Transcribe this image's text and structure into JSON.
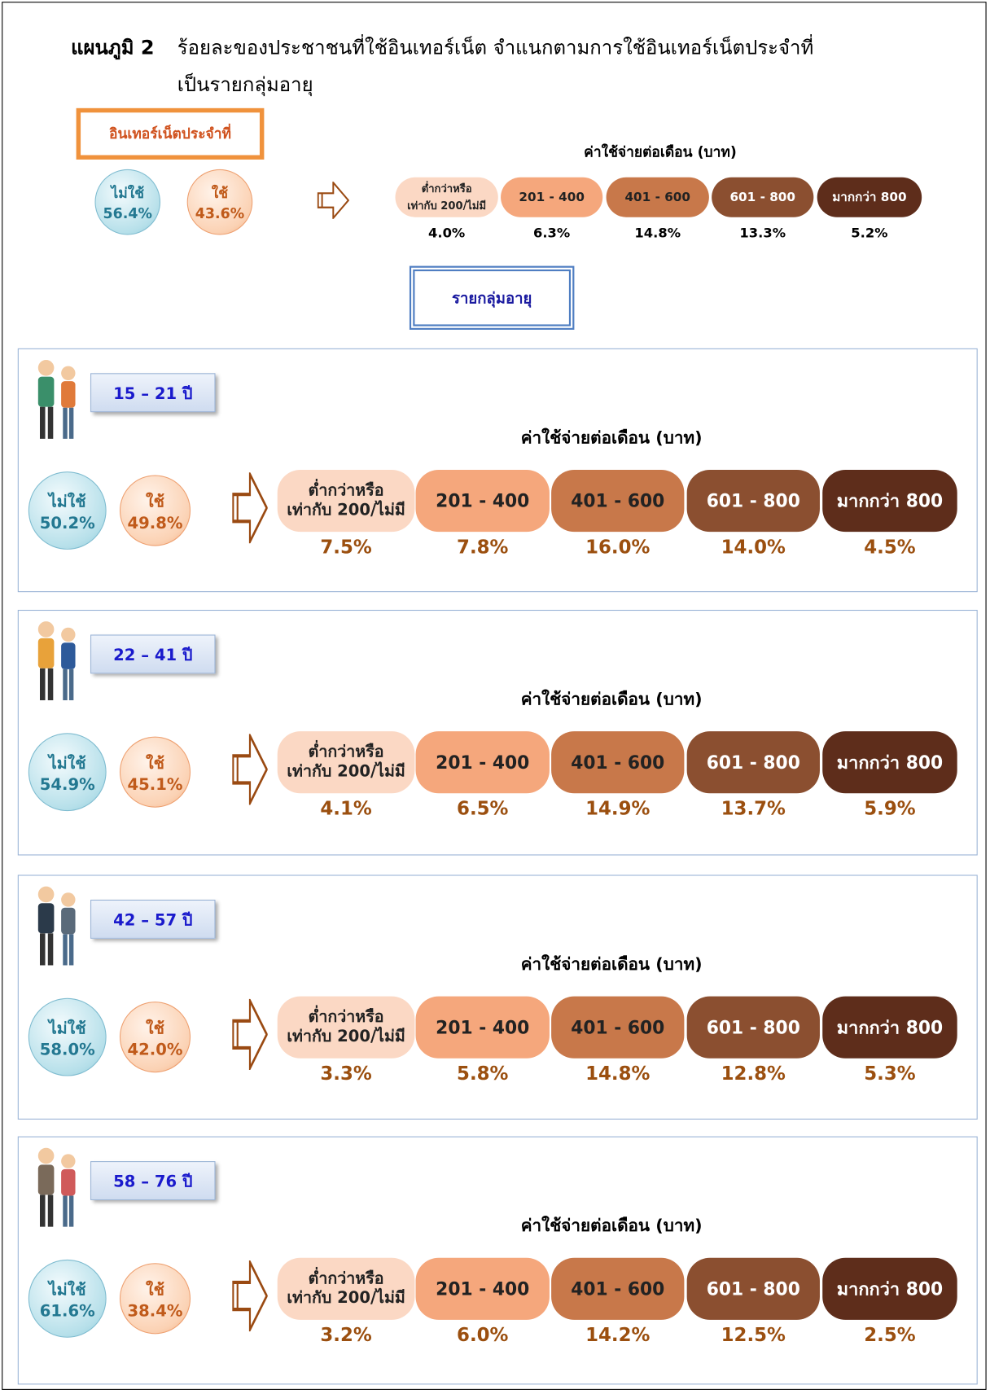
{
  "title": {
    "label": "แผนภูมิ 2",
    "line1": "ร้อยละของประชาชนที่ใช้อินเทอร์เน็ต จำแนกตามการใช้อินเทอร์เน็ตประจำที่",
    "line2": "เป็นรายกลุ่มอายุ"
  },
  "overall": {
    "heading": "อินเทอร์เน็ตประจำที่",
    "not_use": {
      "label": "ไม่ใช้",
      "value": "56.4%"
    },
    "use": {
      "label": "ใช้",
      "value": "43.6%"
    },
    "cost_title": "ค่าใช้จ่ายต่อเดือน (บาท)",
    "costs": [
      {
        "label": [
          "ต่ำกว่าหรือ",
          "เท่ากับ 200/ไม่มี"
        ],
        "value": "4.0%"
      },
      {
        "label": [
          "201 - 400"
        ],
        "value": "6.3%"
      },
      {
        "label": [
          "401 - 600"
        ],
        "value": "14.8%"
      },
      {
        "label": [
          "601 - 800"
        ],
        "value": "13.3%"
      },
      {
        "label": [
          "มากกว่า 800"
        ],
        "value": "5.2%"
      }
    ]
  },
  "group_heading": "รายกลุ่มอายุ",
  "groups": [
    {
      "age": "15 – 21 ปี",
      "not_use": {
        "label": "ไม่ใช้",
        "value": "50.2%"
      },
      "use": {
        "label": "ใช้",
        "value": "49.8%"
      },
      "cost_title": "ค่าใช้จ่ายต่อเดือน (บาท)",
      "costs": [
        {
          "label": [
            "ต่ำกว่าหรือ",
            "เท่ากับ 200/ไม่มี"
          ],
          "value": "7.5%"
        },
        {
          "label": [
            "201 - 400"
          ],
          "value": "7.8%"
        },
        {
          "label": [
            "401 - 600"
          ],
          "value": "16.0%"
        },
        {
          "label": [
            "601 - 800"
          ],
          "value": "14.0%"
        },
        {
          "label": [
            "มากกว่า 800"
          ],
          "value": "4.5%"
        }
      ]
    },
    {
      "age": "22 – 41 ปี",
      "not_use": {
        "label": "ไม่ใช้",
        "value": "54.9%"
      },
      "use": {
        "label": "ใช้",
        "value": "45.1%"
      },
      "cost_title": "ค่าใช้จ่ายต่อเดือน (บาท)",
      "costs": [
        {
          "label": [
            "ต่ำกว่าหรือ",
            "เท่ากับ 200/ไม่มี"
          ],
          "value": "4.1%"
        },
        {
          "label": [
            "201 - 400"
          ],
          "value": "6.5%"
        },
        {
          "label": [
            "401 - 600"
          ],
          "value": "14.9%"
        },
        {
          "label": [
            "601 - 800"
          ],
          "value": "13.7%"
        },
        {
          "label": [
            "มากกว่า 800"
          ],
          "value": "5.9%"
        }
      ]
    },
    {
      "age": "42 – 57 ปี",
      "not_use": {
        "label": "ไม่ใช้",
        "value": "58.0%"
      },
      "use": {
        "label": "ใช้",
        "value": "42.0%"
      },
      "cost_title": "ค่าใช้จ่ายต่อเดือน (บาท)",
      "costs": [
        {
          "label": [
            "ต่ำกว่าหรือ",
            "เท่ากับ 200/ไม่มี"
          ],
          "value": "3.3%"
        },
        {
          "label": [
            "201 - 400"
          ],
          "value": "5.8%"
        },
        {
          "label": [
            "401 - 600"
          ],
          "value": "14.8%"
        },
        {
          "label": [
            "601 - 800"
          ],
          "value": "12.8%"
        },
        {
          "label": [
            "มากกว่า 800"
          ],
          "value": "5.3%"
        }
      ]
    },
    {
      "age": "58 – 76 ปี",
      "not_use": {
        "label": "ไม่ใช้",
        "value": "61.6%"
      },
      "use": {
        "label": "ใช้",
        "value": "38.4%"
      },
      "cost_title": "ค่าใช้จ่ายต่อเดือน (บาท)",
      "costs": [
        {
          "label": [
            "ต่ำกว่าหรือ",
            "เท่ากับ 200/ไม่มี"
          ],
          "value": "3.2%"
        },
        {
          "label": [
            "201 - 400"
          ],
          "value": "6.0%"
        },
        {
          "label": [
            "401 - 600"
          ],
          "value": "14.2%"
        },
        {
          "label": [
            "601 - 800"
          ],
          "value": "12.5%"
        },
        {
          "label": [
            "มากกว่า 800"
          ],
          "value": "2.5%"
        }
      ]
    }
  ]
}
